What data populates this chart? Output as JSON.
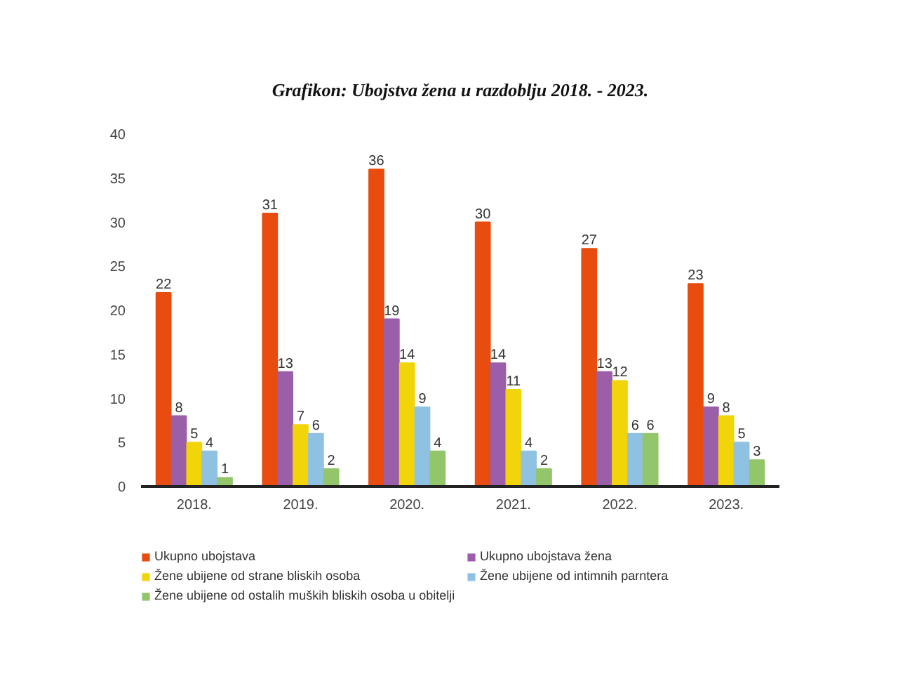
{
  "chart_data": {
    "type": "bar",
    "title": "Grafikon: Ubojstva žena u razdoblju 2018. - 2023.",
    "categories": [
      "2018.",
      "2019.",
      "2020.",
      "2021.",
      "2022.",
      "2023."
    ],
    "series": [
      {
        "name": "Ukupno ubojstava",
        "color": "#e84c0e",
        "values": [
          22,
          31,
          36,
          30,
          27,
          23
        ]
      },
      {
        "name": "Ukupno ubojstava žena",
        "color": "#9a5fa8",
        "values": [
          8,
          13,
          19,
          14,
          13,
          9
        ]
      },
      {
        "name": "Žene ubijene od strane bliskih osoba",
        "color": "#f2d40a",
        "values": [
          5,
          7,
          14,
          11,
          12,
          8
        ]
      },
      {
        "name": "Žene ubijene od intimnih parntera",
        "color": "#8fc1e3",
        "values": [
          4,
          6,
          9,
          4,
          6,
          5
        ]
      },
      {
        "name": "Žene ubijene od ostalih muških bliskih osoba u obitelji",
        "color": "#93c66b",
        "values": [
          1,
          2,
          4,
          2,
          6,
          3
        ]
      }
    ],
    "ylim": [
      0,
      40
    ],
    "yticks": [
      0,
      5,
      10,
      15,
      20,
      25,
      30,
      35,
      40
    ],
    "grid": false,
    "legend": "bottom",
    "data_labels": true
  }
}
